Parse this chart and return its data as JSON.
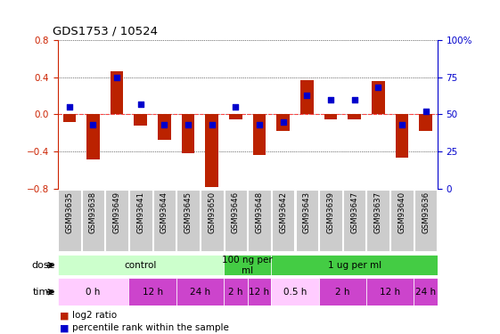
{
  "title": "GDS1753 / 10524",
  "samples": [
    "GSM93635",
    "GSM93638",
    "GSM93649",
    "GSM93641",
    "GSM93644",
    "GSM93645",
    "GSM93650",
    "GSM93646",
    "GSM93648",
    "GSM93642",
    "GSM93643",
    "GSM93639",
    "GSM93647",
    "GSM93637",
    "GSM93640",
    "GSM93636"
  ],
  "log2_ratio": [
    -0.08,
    -0.48,
    0.46,
    -0.12,
    -0.27,
    -0.42,
    -0.78,
    -0.05,
    -0.44,
    -0.18,
    0.37,
    -0.05,
    -0.05,
    0.36,
    -0.47,
    -0.18
  ],
  "percentile": [
    55,
    43,
    75,
    57,
    43,
    43,
    43,
    55,
    43,
    45,
    63,
    60,
    60,
    68,
    43,
    52
  ],
  "ylim": [
    -0.8,
    0.8
  ],
  "yticks_left": [
    -0.8,
    -0.4,
    0.0,
    0.4,
    0.8
  ],
  "yticks_right": [
    0,
    25,
    50,
    75,
    100
  ],
  "dose_groups": [
    {
      "label": "control",
      "start": 0,
      "end": 7,
      "color": "#ccffcc"
    },
    {
      "label": "100 ng per\nml",
      "start": 7,
      "end": 9,
      "color": "#44cc44"
    },
    {
      "label": "1 ug per ml",
      "start": 9,
      "end": 16,
      "color": "#44cc44"
    }
  ],
  "time_groups": [
    {
      "label": "0 h",
      "start": 0,
      "end": 3,
      "color": "#ffccff"
    },
    {
      "label": "12 h",
      "start": 3,
      "end": 5,
      "color": "#cc44cc"
    },
    {
      "label": "24 h",
      "start": 5,
      "end": 7,
      "color": "#cc44cc"
    },
    {
      "label": "2 h",
      "start": 7,
      "end": 8,
      "color": "#cc44cc"
    },
    {
      "label": "12 h",
      "start": 8,
      "end": 9,
      "color": "#cc44cc"
    },
    {
      "label": "0.5 h",
      "start": 9,
      "end": 11,
      "color": "#ffccff"
    },
    {
      "label": "2 h",
      "start": 11,
      "end": 13,
      "color": "#cc44cc"
    },
    {
      "label": "12 h",
      "start": 13,
      "end": 15,
      "color": "#cc44cc"
    },
    {
      "label": "24 h",
      "start": 15,
      "end": 16,
      "color": "#cc44cc"
    }
  ],
  "bar_color": "#bb2200",
  "dot_color": "#0000cc",
  "left_axis_color": "#cc2200",
  "right_axis_color": "#0000cc",
  "background_color": "#ffffff",
  "zero_line_color": "#ff4444",
  "sample_box_color": "#cccccc",
  "n_samples": 16
}
